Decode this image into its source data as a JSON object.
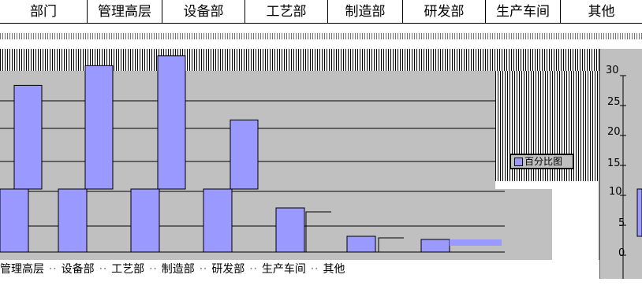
{
  "header": {
    "cells": [
      {
        "label": "部门"
      },
      {
        "label": "管理高层"
      },
      {
        "label": "设备部"
      },
      {
        "label": "工艺部"
      },
      {
        "label": "制造部"
      },
      {
        "label": "研发部"
      },
      {
        "label": "生产车间"
      },
      {
        "label": "其他"
      }
    ]
  },
  "legend": {
    "label": "百分比图"
  },
  "y_axis_ticks": [
    "30",
    "25",
    "20",
    "15",
    "10",
    "5",
    "0"
  ],
  "chart_data": {
    "type": "bar",
    "categories": [
      "管理高层",
      "设备部",
      "工艺部",
      "制造部",
      "研发部",
      "生产车间",
      "其他"
    ],
    "series": [
      {
        "values": [
          21,
          25,
          27,
          14,
          7,
          2.5,
          2
        ]
      }
    ],
    "ylim": [
      0,
      30
    ],
    "colors": {
      "bar": "#9999ff",
      "plot": "#c0c0c0"
    }
  }
}
